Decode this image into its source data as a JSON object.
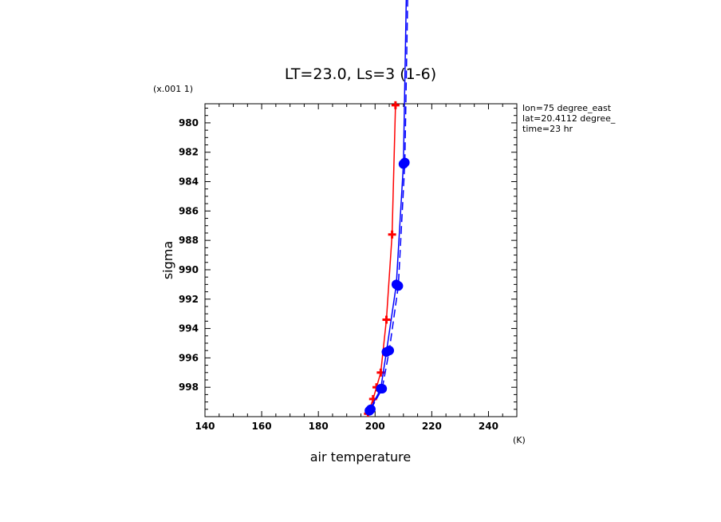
{
  "chart_data": {
    "type": "line",
    "title": "LT=23.0, Ls=3 (1-6)",
    "xlabel": "air temperature",
    "ylabel": "sigma",
    "x_unit": "(K)",
    "y_multiplier": "(x.001 1)",
    "xlim": [
      140,
      250
    ],
    "ylim_sigma_x1000": [
      1000,
      978.7
    ],
    "x_ticks": [
      140,
      160,
      180,
      200,
      220,
      240
    ],
    "y_ticks": [
      980,
      982,
      984,
      986,
      988,
      990,
      992,
      994,
      996,
      998
    ],
    "x_tick_labels": [
      "140",
      "160",
      "180",
      "200",
      "220",
      "240"
    ],
    "y_tick_labels": [
      "980",
      "982",
      "984",
      "986",
      "988",
      "990",
      "992",
      "994",
      "996",
      "998"
    ],
    "annotations": [
      "lon=75 degree_east",
      "lat=20.4112 degree_",
      "time=23 hr"
    ],
    "series": [
      {
        "color": "#ff0000",
        "style": "solid",
        "marker": "cross",
        "x": [
          197.5,
          199.3,
          200.5,
          202.0,
          204.0,
          206.0,
          207.2
        ],
        "y": [
          999.8,
          998.8,
          998.0,
          997.0,
          993.4,
          987.6,
          978.8
        ]
      },
      {
        "color": "#0000ff",
        "style": "solid",
        "marker": "dot",
        "x": [
          198.0,
          202.0,
          204.0,
          207.5,
          210.0,
          211.5
        ],
        "y": [
          999.6,
          998.1,
          995.6,
          991.0,
          982.8,
          966.0
        ]
      },
      {
        "color": "#0000ff",
        "style": "dashed",
        "marker": "dot",
        "x": [
          198.5,
          202.5,
          205.0,
          208.2,
          210.5,
          212.0
        ],
        "y": [
          999.5,
          998.1,
          995.5,
          991.1,
          982.7,
          966.0
        ]
      }
    ]
  }
}
